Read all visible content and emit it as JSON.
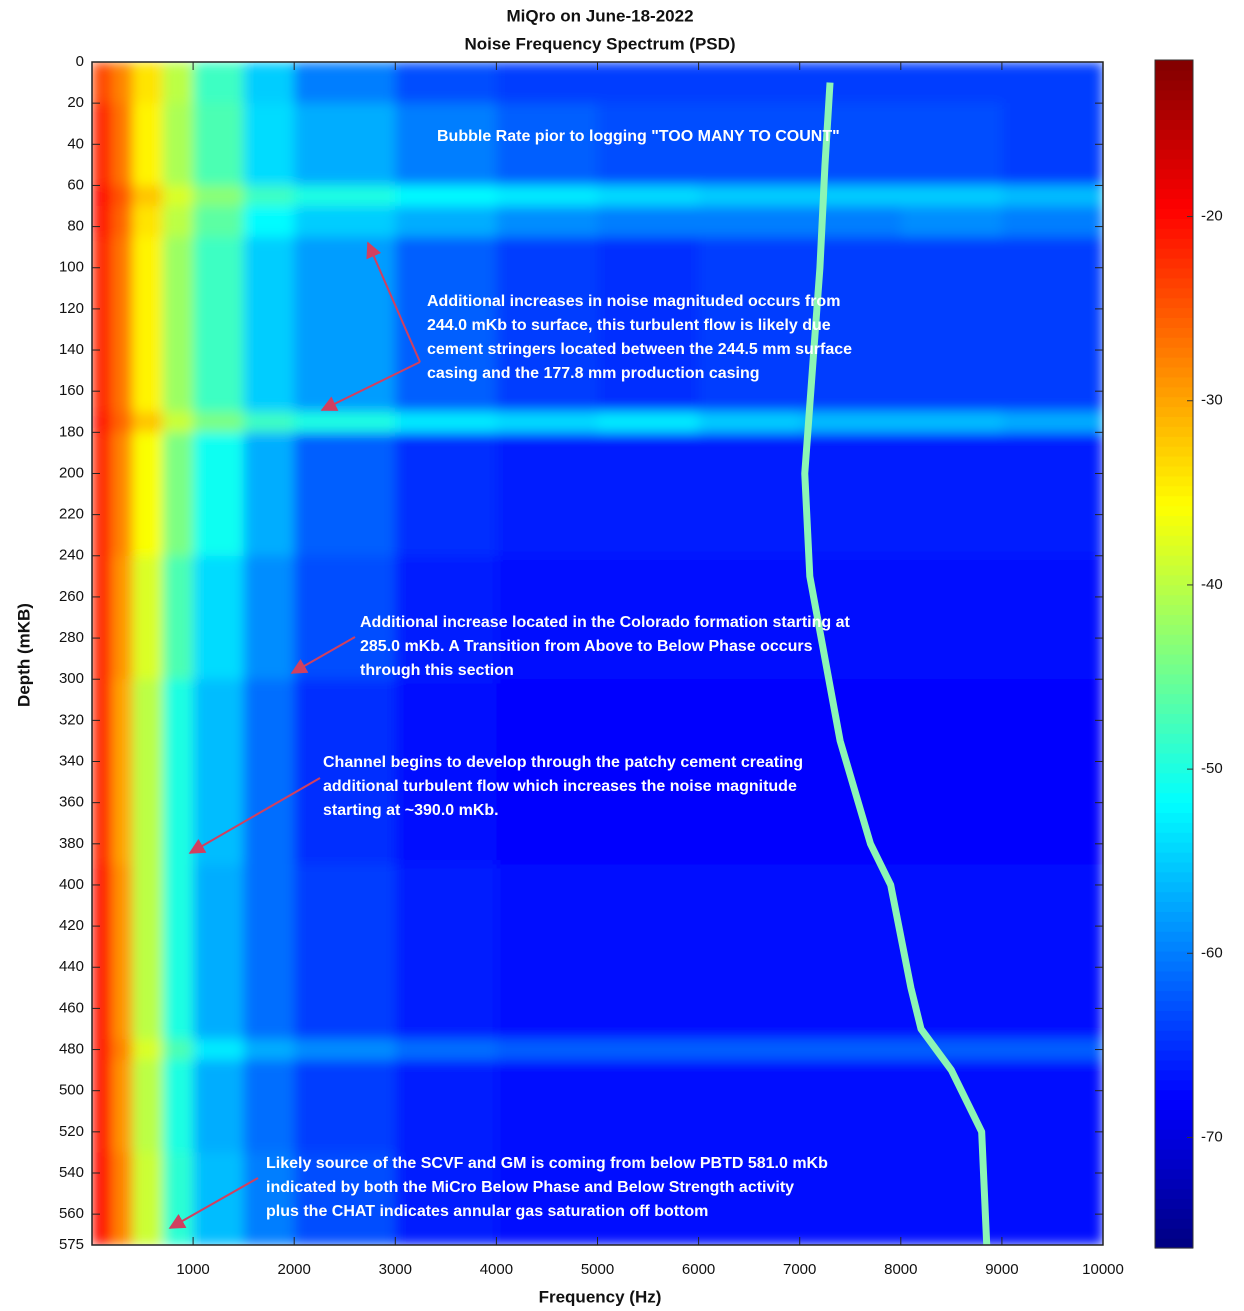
{
  "chart_data": {
    "type": "heatmap",
    "title": [
      "MiQro on June-18-2022",
      "Noise Frequency Spectrum (PSD)"
    ],
    "xlabel": "Frequency (Hz)",
    "ylabel": "Depth (mKB)",
    "xbins": [
      0,
      200,
      400,
      700,
      1000,
      1500,
      2000,
      3000,
      4000,
      5000,
      6000,
      7000,
      8000,
      9000,
      10000
    ],
    "ybins": [
      0,
      20,
      60,
      70,
      85,
      170,
      180,
      240,
      300,
      390,
      475,
      485,
      530,
      575
    ],
    "z": [
      [
        -24,
        -28,
        -34,
        -40,
        -48,
        -55,
        -60,
        -63,
        -64,
        -64,
        -64,
        -64,
        -64,
        -64
      ],
      [
        -22,
        -27,
        -35,
        -41,
        -47,
        -54,
        -57,
        -60,
        -62,
        -63,
        -63,
        -63,
        -63,
        -64
      ],
      [
        -20,
        -25,
        -32,
        -38,
        -43,
        -48,
        -50,
        -52,
        -53,
        -54,
        -55,
        -55,
        -55,
        -56
      ],
      [
        -21,
        -26,
        -34,
        -40,
        -46,
        -52,
        -55,
        -57,
        -59,
        -60,
        -60,
        -60,
        -59,
        -60
      ],
      [
        -22,
        -27,
        -35,
        -42,
        -48,
        -55,
        -58,
        -62,
        -64,
        -65,
        -64,
        -64,
        -64,
        -64
      ],
      [
        -21,
        -26,
        -32,
        -39,
        -44,
        -48,
        -50,
        -53,
        -54,
        -53,
        -55,
        -56,
        -56,
        -57
      ],
      [
        -22,
        -28,
        -36,
        -44,
        -51,
        -57,
        -62,
        -65,
        -66,
        -66,
        -66,
        -66,
        -66,
        -66
      ],
      [
        -22,
        -29,
        -38,
        -47,
        -54,
        -59,
        -63,
        -66,
        -67,
        -67,
        -67,
        -67,
        -67,
        -67
      ],
      [
        -22,
        -30,
        -40,
        -50,
        -56,
        -61,
        -65,
        -67,
        -68,
        -68,
        -68,
        -68,
        -68,
        -68
      ],
      [
        -21,
        -29,
        -40,
        -50,
        -57,
        -61,
        -64,
        -66,
        -67,
        -67,
        -67,
        -67,
        -67,
        -67
      ],
      [
        -21,
        -28,
        -38,
        -47,
        -53,
        -57,
        -59,
        -61,
        -62,
        -62,
        -62,
        -62,
        -62,
        -62
      ],
      [
        -21,
        -29,
        -40,
        -50,
        -57,
        -61,
        -64,
        -66,
        -67,
        -67,
        -67,
        -67,
        -67,
        -67
      ],
      [
        -20,
        -28,
        -39,
        -49,
        -56,
        -60,
        -63,
        -66,
        -67,
        -67,
        -67,
        -67,
        -67,
        -67
      ]
    ],
    "trace": {
      "color": "#8cf5b4",
      "x": [
        7300,
        7250,
        7200,
        7050,
        7100,
        7400,
        7700,
        7900,
        8100,
        8200,
        8500,
        8800,
        8850
      ],
      "y": [
        10,
        50,
        100,
        200,
        250,
        330,
        380,
        400,
        450,
        470,
        490,
        520,
        575
      ]
    },
    "xlim": [
      0,
      10000
    ],
    "ylim": [
      0,
      575
    ],
    "y_inverted": true,
    "xticks": [
      1000,
      2000,
      3000,
      4000,
      5000,
      6000,
      7000,
      8000,
      9000,
      10000
    ],
    "yticks": [
      0,
      20,
      40,
      60,
      80,
      100,
      120,
      140,
      160,
      180,
      200,
      220,
      240,
      260,
      280,
      300,
      320,
      340,
      360,
      380,
      400,
      420,
      440,
      460,
      480,
      500,
      520,
      540,
      560,
      575
    ],
    "colormap": "jet",
    "clim": [
      -76,
      -11.5
    ],
    "cticks": [
      -20,
      -30,
      -40,
      -50,
      -60,
      -70
    ],
    "annotations": [
      [
        "Bubble Rate pior to logging \"TOO MANY TO COUNT\""
      ],
      [
        "Additional increases in noise magnituded occurs from",
        "244.0 mKb to surface, this turbulent flow  is likely due",
        "cement stringers located between the 244.5 mm surface",
        "casing and the 177.8 mm production casing"
      ],
      [
        "Additional increase located in the Colorado formation starting at",
        "285.0 mKb.  A Transition from Above to Below Phase occurs",
        "through this section"
      ],
      [
        "Channel begins to develop through the patchy cement creating",
        "additional turbulent flow which increases the noise magnitude",
        "starting at ~390.0 mKb."
      ],
      [
        "Likely source of the SCVF and GM is coming from below PBTD 581.0 mKb",
        "indicated by both the MiCro Below Phase and Below Strength activity",
        "plus the CHAT indicates annular gas saturation off bottom"
      ]
    ]
  }
}
